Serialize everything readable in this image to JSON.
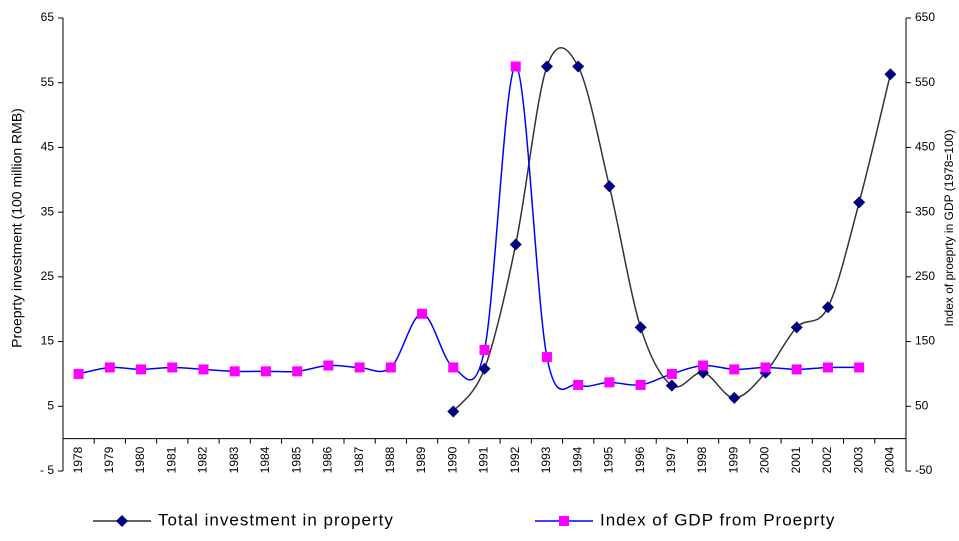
{
  "chart_data": {
    "type": "line",
    "y_label": "Proeprty investment (100 million RMB)",
    "y2_label": "Index of proeprty in GDP (1978=100)",
    "categories": [
      "1978",
      "1979",
      "1980",
      "1981",
      "1982",
      "1983",
      "1984",
      "1985",
      "1986",
      "1987",
      "1988",
      "1989",
      "1990",
      "1991",
      "1992",
      "1993",
      "1994",
      "1995",
      "1996",
      "1997",
      "1998",
      "1999",
      "2000",
      "2001",
      "2002",
      "2003",
      "2004"
    ],
    "ylim": [
      -5,
      65
    ],
    "yticks": [
      {
        "value": -5,
        "label": "- 5"
      },
      5,
      15,
      25,
      35,
      45,
      55,
      65
    ],
    "y2lim": [
      -50,
      650
    ],
    "y2ticks": [
      -50,
      50,
      150,
      250,
      350,
      450,
      550,
      650
    ],
    "smooth": true,
    "series": [
      {
        "name": "Total investment in property",
        "color": "#000080",
        "line_color": "#333333",
        "marker": "diamond",
        "values": [
          null,
          null,
          null,
          null,
          null,
          null,
          null,
          null,
          null,
          null,
          null,
          null,
          4.2,
          10.8,
          30,
          57.5,
          57.5,
          39,
          17.2,
          8.2,
          10.2,
          6.3,
          10.2,
          17.2,
          20.3,
          36.5,
          56.3
        ]
      },
      {
        "name": "Index of GDP from Proeprty",
        "color": "#ff00ff",
        "line_color": "#0000ff",
        "marker": "square",
        "axis": "y2",
        "values": [
          100,
          110,
          107,
          110,
          107,
          104,
          104,
          104,
          113,
          110,
          110,
          193,
          110,
          137,
          575,
          126,
          83,
          87,
          83,
          100,
          113,
          107,
          110,
          107,
          110,
          110,
          null
        ]
      }
    ]
  }
}
